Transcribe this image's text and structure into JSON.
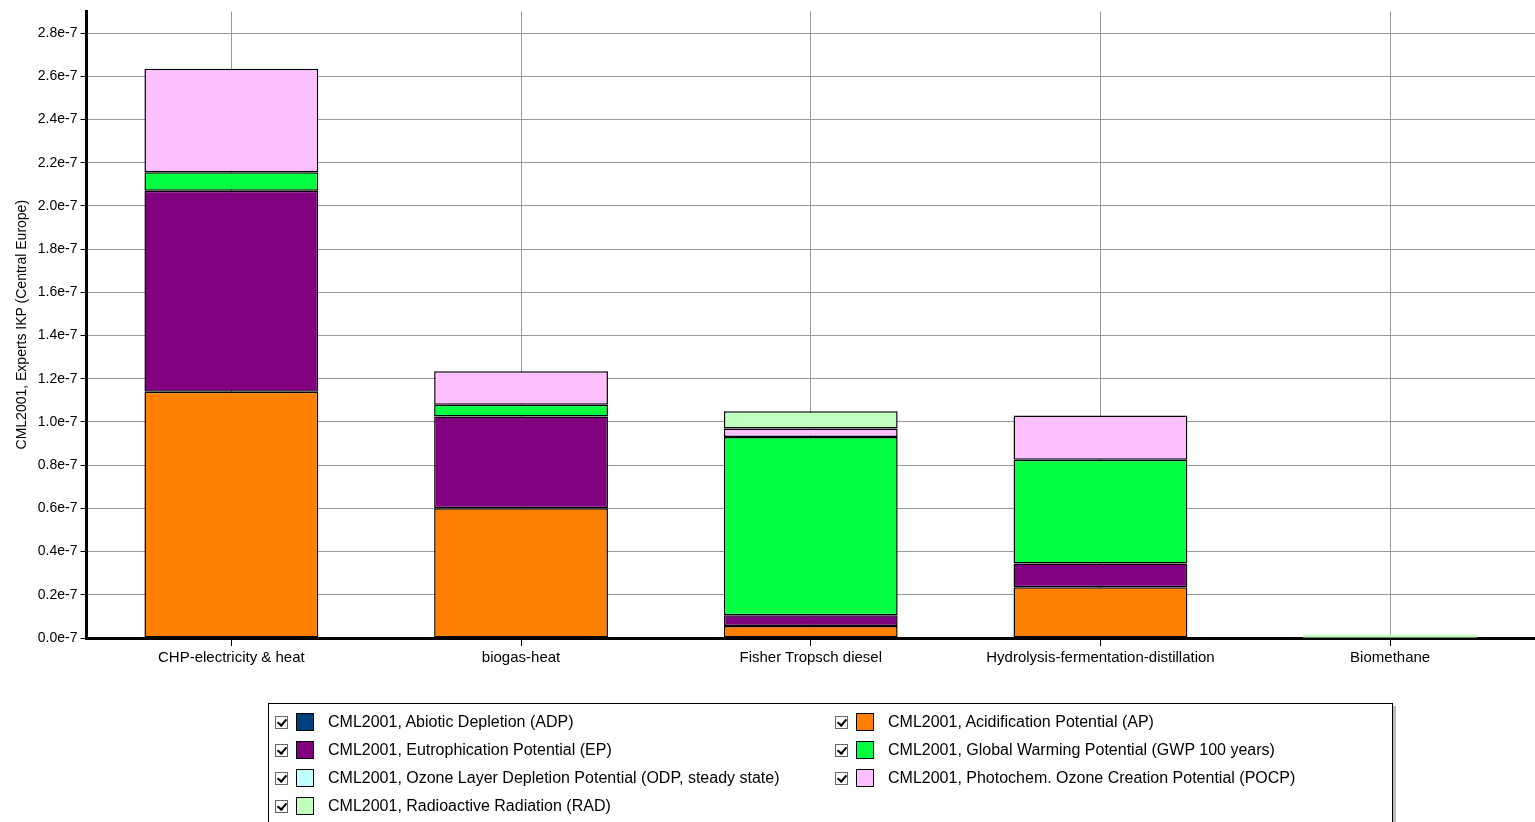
{
  "chart_data": {
    "type": "bar",
    "stacked": true,
    "ylabel": "CML2001, Experts IKP (Central Europe)",
    "categories": [
      "CHP-electricity & heat",
      "biogas-heat",
      "Fisher Tropsch diesel",
      "Hydrolysis-fermentation-distillation",
      "Biomethane"
    ],
    "series": [
      {
        "name": "CML2001, Abiotic Depletion (ADP)",
        "color": "#003f7f",
        "values": [
          null,
          null,
          null,
          null,
          null
        ]
      },
      {
        "name": "CML2001, Acidification Potential (AP)",
        "color": "#ff8000",
        "values": [
          1.14e-07,
          6e-08,
          5.5e-09,
          2.35e-08,
          null
        ]
      },
      {
        "name": "CML2001, Eutrophication Potential (EP)",
        "color": "#800080",
        "values": [
          9.3e-08,
          4.25e-08,
          5e-09,
          1.1e-08,
          null
        ]
      },
      {
        "name": "CML2001, Global Warming Potential (GWP 100 years)",
        "color": "#00ff40",
        "values": [
          8.5e-09,
          5.5e-09,
          8.25e-08,
          4.8e-08,
          null
        ]
      },
      {
        "name": "CML2001, Ozone Layer Depletion Potential (ODP, steady state)",
        "color": "#c0ffff",
        "values": [
          null,
          null,
          null,
          null,
          null
        ]
      },
      {
        "name": "CML2001, Photochem. Ozone Creation Potential (POCP)",
        "color": "#ffc0ff",
        "values": [
          4.8e-08,
          1.55e-08,
          4e-09,
          2.05e-08,
          null
        ]
      },
      {
        "name": "CML2001, Radioactive Radiation (RAD)",
        "color": "#c0ffc0",
        "values": [
          null,
          null,
          8e-09,
          null,
          1.5e-09
        ]
      }
    ],
    "ylim": [
      0,
      2.9e-07
    ],
    "yticks": [
      {
        "value": 0,
        "label": "0.0e-7"
      },
      {
        "value": 2e-08,
        "label": "0.2e-7"
      },
      {
        "value": 4e-08,
        "label": "0.4e-7"
      },
      {
        "value": 6e-08,
        "label": "0.6e-7"
      },
      {
        "value": 8e-08,
        "label": "0.8e-7"
      },
      {
        "value": 1e-07,
        "label": "1.0e-7"
      },
      {
        "value": 1.2e-07,
        "label": "1.2e-7"
      },
      {
        "value": 1.4e-07,
        "label": "1.4e-7"
      },
      {
        "value": 1.6e-07,
        "label": "1.6e-7"
      },
      {
        "value": 1.8e-07,
        "label": "1.8e-7"
      },
      {
        "value": 2e-07,
        "label": "2.0e-7"
      },
      {
        "value": 2.2e-07,
        "label": "2.2e-7"
      },
      {
        "value": 2.4e-07,
        "label": "2.4e-7"
      },
      {
        "value": 2.6e-07,
        "label": "2.6e-7"
      },
      {
        "value": 2.8e-07,
        "label": "2.8e-7"
      }
    ],
    "grid": true,
    "legend": "bottom"
  }
}
